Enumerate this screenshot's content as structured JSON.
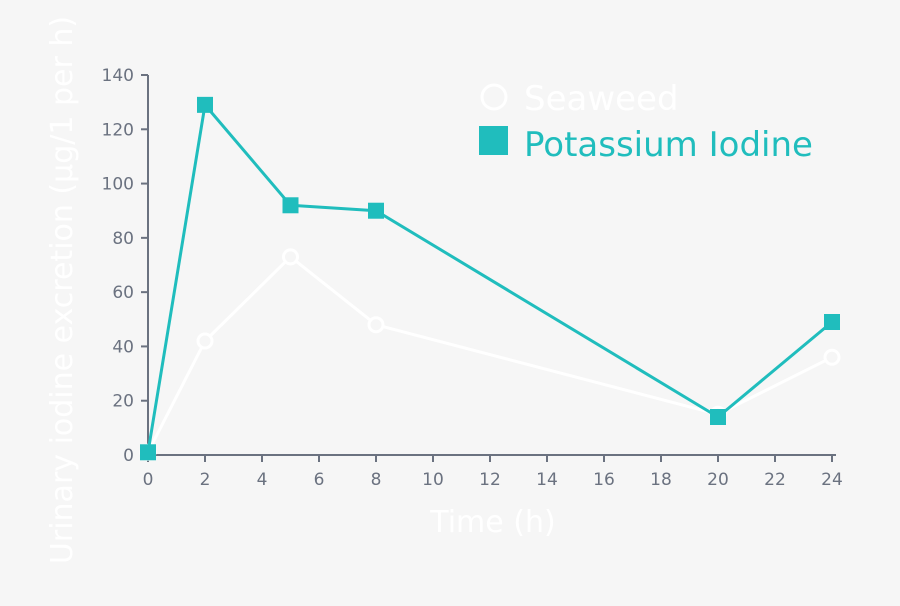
{
  "chart_data": {
    "type": "line",
    "title": "",
    "xlabel": "Time (h)",
    "ylabel": "Urinary iodine excretion (µg/1 per h)",
    "xlim": [
      0,
      24
    ],
    "ylim": [
      0,
      140
    ],
    "x_ticks": [
      0,
      2,
      4,
      6,
      8,
      10,
      12,
      14,
      16,
      18,
      20,
      22,
      24
    ],
    "y_ticks": [
      0,
      20,
      40,
      60,
      80,
      100,
      120,
      140
    ],
    "grid": false,
    "legend_position": "top-right",
    "series": [
      {
        "name": "Seaweed",
        "color": "#ffffff",
        "marker": "open-circle",
        "x": [
          0,
          2,
          5,
          8,
          20,
          24
        ],
        "y": [
          1,
          42,
          73,
          48,
          15,
          36
        ]
      },
      {
        "name": "Potassium Iodine",
        "color": "#20bdbd",
        "marker": "filled-square",
        "x": [
          0,
          2,
          5,
          8,
          20,
          24
        ],
        "y": [
          1,
          129,
          92,
          90,
          14,
          49
        ]
      }
    ]
  },
  "axis_color": "#6b7280"
}
